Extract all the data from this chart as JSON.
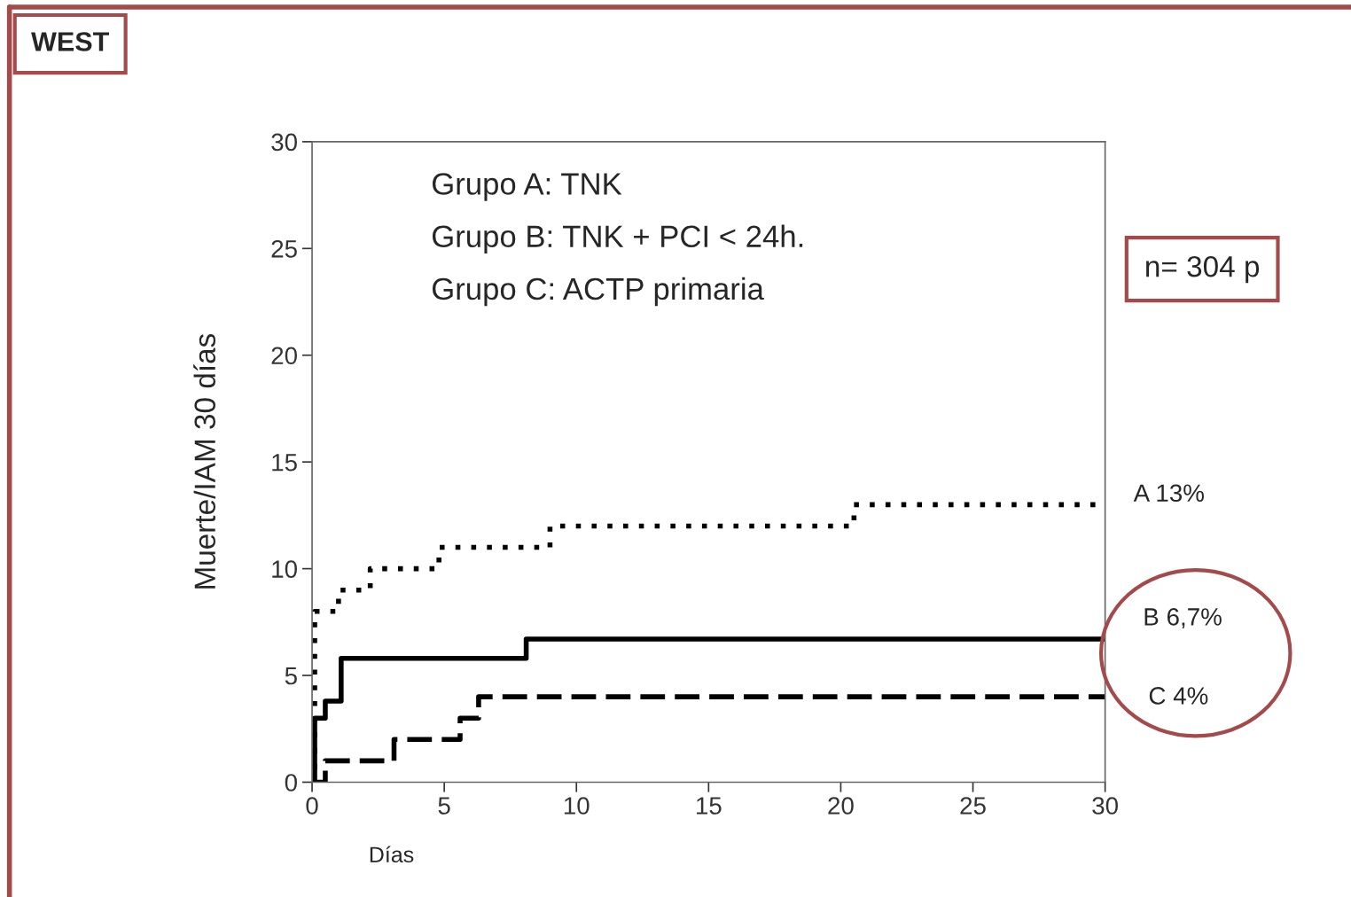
{
  "chart_data": {
    "type": "step",
    "title": "WEST",
    "xlabel": "Días",
    "ylabel": "Muerte/IAM 30 días",
    "xlim": [
      0,
      30
    ],
    "xticks": [
      0,
      5,
      10,
      15,
      20,
      25,
      30
    ],
    "ylim": [
      0,
      30
    ],
    "yticks": [
      0,
      5,
      10,
      15,
      20,
      25,
      30
    ],
    "grid": false,
    "marker": "none",
    "series": [
      {
        "color": "#000000",
        "line_style": "dotted",
        "x": [
          0,
          0.1,
          1,
          2.2,
          4.8,
          9,
          20.5,
          30
        ],
        "values": [
          0,
          8,
          9,
          10,
          11,
          12,
          13,
          13
        ]
      },
      {
        "color": "#000000",
        "line_style": "solid",
        "x": [
          0,
          0.1,
          0.5,
          1.1,
          8.1,
          30
        ],
        "values": [
          0,
          3,
          3.8,
          5.8,
          6.7,
          6.7
        ]
      },
      {
        "color": "#000000",
        "line_style": "dashed",
        "x": [
          0,
          0.5,
          3.1,
          5.6,
          6.3,
          30
        ],
        "values": [
          0,
          1,
          2,
          3,
          4,
          4
        ]
      }
    ],
    "annotations": [
      "Grupo A: TNK",
      "Grupo B: TNK + PCI < 24h.",
      "Grupo C: ACTP primaria",
      "n= 304 p",
      "A 13%",
      "B 6,7%",
      "C 4%"
    ]
  }
}
